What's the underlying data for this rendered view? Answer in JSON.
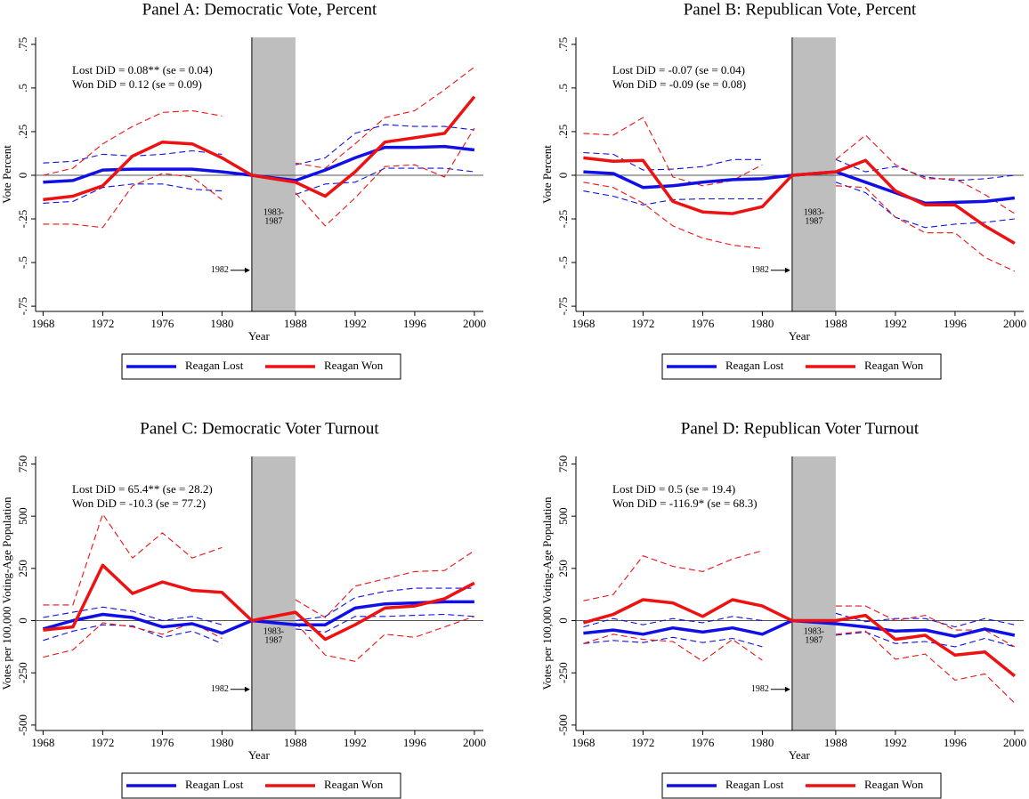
{
  "chart_data": [
    {
      "type": "line",
      "title": "Panel A: Democratic Vote, Percent",
      "x_label": "Year",
      "y_label": "Vote Percent",
      "x": [
        1968,
        1970,
        1972,
        1974,
        1976,
        1978,
        1980,
        1982,
        1988,
        1990,
        1992,
        1994,
        1996,
        1998,
        2000
      ],
      "xlim": [
        1967.5,
        2000.6
      ],
      "xticks": [
        1968,
        1972,
        1976,
        1980,
        1988,
        1992,
        1996,
        2000
      ],
      "ylim": [
        -0.78,
        0.79
      ],
      "yticks": [
        {
          "value": -0.75,
          "label": "-.75"
        },
        {
          "value": -0.5,
          "label": "-.5"
        },
        {
          "value": -0.25,
          "label": "-.25"
        },
        0,
        {
          "value": 0.25,
          "label": ".25"
        },
        {
          "value": 0.5,
          "label": ".5"
        },
        {
          "value": 0.75,
          "label": ".75"
        }
      ],
      "shade": [
        1982,
        1988
      ],
      "shade_label": [
        "1983-",
        "1987"
      ],
      "annotations": [
        "Lost DiD = 0.08** (se = 0.04)",
        "Won DiD = 0.12 (se = 0.09)"
      ],
      "legend": "bottom",
      "series": [
        {
          "name": "Reagan Lost",
          "color": "#1010e6",
          "values": [
            -0.04,
            -0.03,
            0.03,
            0.035,
            0.035,
            0.035,
            0.02,
            0,
            -0.03,
            0.03,
            0.1,
            0.16,
            0.16,
            0.165,
            0.145
          ],
          "ci_upper": [
            0.07,
            0.08,
            0.12,
            0.11,
            0.12,
            0.14,
            0.12,
            null,
            0.06,
            0.1,
            0.24,
            0.29,
            0.28,
            0.28,
            0.26
          ],
          "ci_lower": [
            -0.16,
            -0.15,
            -0.07,
            -0.05,
            -0.05,
            -0.08,
            -0.09,
            null,
            -0.11,
            -0.05,
            -0.04,
            0.04,
            0.04,
            0.04,
            0.02
          ]
        },
        {
          "name": "Reagan Won",
          "color": "#ee1111",
          "values": [
            -0.14,
            -0.12,
            -0.06,
            0.11,
            0.19,
            0.18,
            0.1,
            0,
            -0.04,
            -0.12,
            0.02,
            0.19,
            0.215,
            0.24,
            0.45
          ],
          "ci_upper": [
            0.0,
            0.04,
            0.18,
            0.28,
            0.36,
            0.37,
            0.34,
            null,
            0.07,
            0.04,
            0.18,
            0.33,
            0.37,
            0.49,
            0.62
          ],
          "ci_lower": [
            -0.28,
            -0.28,
            -0.3,
            -0.06,
            0.01,
            -0.01,
            -0.14,
            null,
            -0.1,
            -0.29,
            -0.13,
            0.05,
            0.06,
            -0.01,
            0.27
          ]
        }
      ]
    },
    {
      "type": "line",
      "title": "Panel B: Republican Vote, Percent",
      "x_label": "Year",
      "y_label": "Vote Percent",
      "x": [
        1968,
        1970,
        1972,
        1974,
        1976,
        1978,
        1980,
        1982,
        1988,
        1990,
        1992,
        1994,
        1996,
        1998,
        2000
      ],
      "xlim": [
        1967.5,
        2000.6
      ],
      "xticks": [
        1968,
        1972,
        1976,
        1980,
        1988,
        1992,
        1996,
        2000
      ],
      "ylim": [
        -0.78,
        0.79
      ],
      "yticks": [
        {
          "value": -0.75,
          "label": "-.75"
        },
        {
          "value": -0.5,
          "label": "-.5"
        },
        {
          "value": -0.25,
          "label": "-.25"
        },
        0,
        {
          "value": 0.25,
          "label": ".25"
        },
        {
          "value": 0.5,
          "label": ".5"
        },
        {
          "value": 0.75,
          "label": ".75"
        }
      ],
      "shade": [
        1982,
        1988
      ],
      "shade_label": [
        "1983-",
        "1987"
      ],
      "annotations": [
        "Lost DiD = -0.07 (se = 0.04)",
        "Won DiD = -0.09 (se = 0.08)"
      ],
      "legend": "bottom",
      "series": [
        {
          "name": "Reagan Lost",
          "color": "#1010e6",
          "values": [
            0.02,
            0.01,
            -0.07,
            -0.06,
            -0.04,
            -0.025,
            -0.02,
            0,
            0.02,
            -0.04,
            -0.1,
            -0.16,
            -0.155,
            -0.15,
            -0.13
          ],
          "ci_upper": [
            0.13,
            0.12,
            0.03,
            0.035,
            0.05,
            0.09,
            0.09,
            null,
            0.09,
            0.02,
            0.05,
            -0.01,
            -0.03,
            -0.02,
            0.0
          ],
          "ci_lower": [
            -0.09,
            -0.12,
            -0.17,
            -0.14,
            -0.135,
            -0.135,
            -0.135,
            null,
            -0.04,
            -0.1,
            -0.24,
            -0.3,
            -0.28,
            -0.27,
            -0.25
          ]
        },
        {
          "name": "Reagan Won",
          "color": "#ee1111",
          "values": [
            0.1,
            0.08,
            0.085,
            -0.15,
            -0.21,
            -0.22,
            -0.18,
            0,
            0.02,
            0.085,
            -0.09,
            -0.17,
            -0.17,
            -0.29,
            -0.39
          ],
          "ci_upper": [
            0.24,
            0.23,
            0.33,
            -0.01,
            -0.06,
            -0.03,
            0.06,
            null,
            0.09,
            0.23,
            0.06,
            -0.02,
            -0.02,
            -0.11,
            -0.22
          ],
          "ci_lower": [
            -0.04,
            -0.07,
            -0.16,
            -0.29,
            -0.36,
            -0.4,
            -0.42,
            null,
            -0.06,
            -0.07,
            -0.24,
            -0.33,
            -0.33,
            -0.47,
            -0.55
          ]
        }
      ]
    },
    {
      "type": "line",
      "title": "Panel C: Democratic Voter Turnout",
      "x_label": "Year",
      "y_label": "Votes per 100,000 Voting-Age Population",
      "x": [
        1968,
        1970,
        1972,
        1974,
        1976,
        1978,
        1980,
        1982,
        1988,
        1990,
        1992,
        1994,
        1996,
        1998,
        2000
      ],
      "xlim": [
        1967.5,
        2000.6
      ],
      "xticks": [
        1968,
        1972,
        1976,
        1980,
        1988,
        1992,
        1996,
        2000
      ],
      "ylim": [
        -526,
        786
      ],
      "yticks": [
        -500,
        -250,
        0,
        250,
        500,
        750
      ],
      "shade": [
        1982,
        1988
      ],
      "shade_label": [
        "1983-",
        "1987"
      ],
      "annotations": [
        "Lost DiD = 65.4** (se = 28.2)",
        "Won DiD = -10.3 (se = 77.2)"
      ],
      "legend": "bottom",
      "series": [
        {
          "name": "Reagan Lost",
          "color": "#1010e6",
          "values": [
            -40,
            0,
            30,
            15,
            -30,
            -15,
            -60,
            0,
            -20,
            -20,
            60,
            80,
            85,
            90,
            90
          ],
          "ci_upper": [
            15,
            40,
            65,
            45,
            0,
            20,
            -20,
            null,
            0,
            20,
            110,
            140,
            155,
            155,
            155
          ],
          "ci_lower": [
            -95,
            -50,
            -20,
            -25,
            -80,
            -50,
            -110,
            null,
            -40,
            -55,
            20,
            20,
            25,
            30,
            20
          ]
        },
        {
          "name": "Reagan Won",
          "color": "#ee1111",
          "values": [
            -45,
            -30,
            265,
            130,
            185,
            145,
            135,
            0,
            40,
            -90,
            -20,
            60,
            70,
            105,
            180
          ],
          "ci_upper": [
            75,
            75,
            510,
            300,
            420,
            300,
            350,
            null,
            100,
            15,
            165,
            200,
            235,
            240,
            335
          ],
          "ci_lower": [
            -175,
            -140,
            -10,
            -30,
            -65,
            -10,
            -85,
            null,
            -10,
            -165,
            -195,
            -65,
            -80,
            -30,
            20
          ]
        }
      ]
    },
    {
      "type": "line",
      "title": "Panel D: Republican Voter Turnout",
      "x_label": "Year",
      "y_label": "Votes per 100,000 Voting-Age Population",
      "x": [
        1968,
        1970,
        1972,
        1974,
        1976,
        1978,
        1980,
        1982,
        1988,
        1990,
        1992,
        1994,
        1996,
        1998,
        2000
      ],
      "xlim": [
        1967.5,
        2000.6
      ],
      "xticks": [
        1968,
        1972,
        1976,
        1980,
        1988,
        1992,
        1996,
        2000
      ],
      "ylim": [
        -526,
        786
      ],
      "yticks": [
        -500,
        -250,
        0,
        250,
        500,
        750
      ],
      "shade": [
        1982,
        1988
      ],
      "shade_label": [
        "1983-",
        "1987"
      ],
      "annotations": [
        "Lost DiD = 0.5 (se = 19.4)",
        "Won DiD = -116.9* (se = 68.3)"
      ],
      "legend": "bottom",
      "series": [
        {
          "name": "Reagan Lost",
          "color": "#1010e6",
          "values": [
            -60,
            -45,
            -65,
            -35,
            -55,
            -35,
            -65,
            0,
            -15,
            -30,
            -50,
            -45,
            -75,
            -40,
            -70
          ],
          "ci_upper": [
            -30,
            10,
            -20,
            10,
            -10,
            20,
            0,
            null,
            35,
            -5,
            10,
            10,
            -30,
            10,
            -20
          ],
          "ci_lower": [
            -110,
            -95,
            -105,
            -80,
            -105,
            -85,
            -125,
            null,
            -70,
            -55,
            -110,
            -100,
            -125,
            -85,
            -125
          ]
        },
        {
          "name": "Reagan Won",
          "color": "#ee1111",
          "values": [
            -10,
            30,
            100,
            85,
            20,
            100,
            70,
            0,
            0,
            25,
            -90,
            -70,
            -165,
            -150,
            -265
          ],
          "ci_upper": [
            95,
            125,
            310,
            260,
            235,
            295,
            335,
            null,
            70,
            70,
            0,
            25,
            -45,
            -45,
            -125
          ],
          "ci_lower": [
            -110,
            -65,
            -90,
            -100,
            -195,
            -90,
            -190,
            null,
            -65,
            -50,
            -185,
            -160,
            -285,
            -255,
            -395
          ]
        }
      ]
    }
  ]
}
